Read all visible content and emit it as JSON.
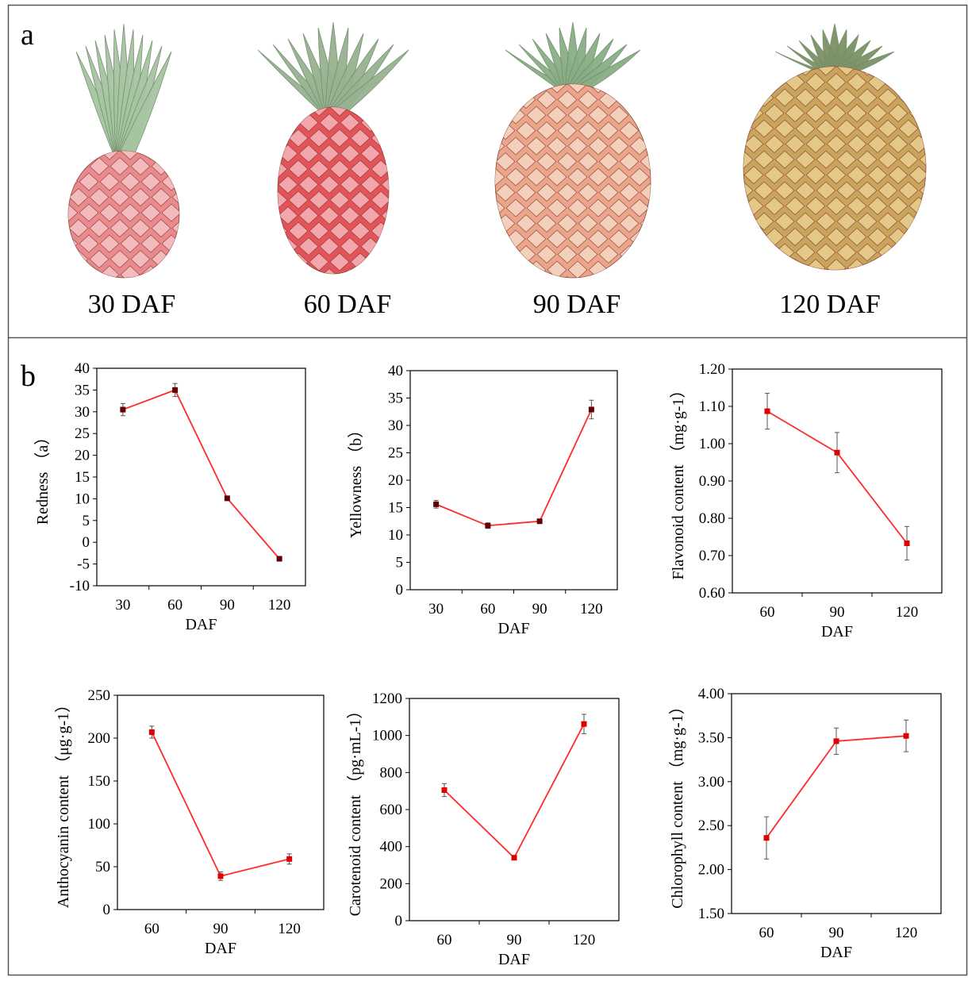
{
  "panel_a": {
    "label": "a",
    "stages": [
      "30 DAF",
      "60 DAF",
      "90 DAF",
      "120 DAF"
    ],
    "fruit_colors": [
      {
        "body": "#e98a8e",
        "scale": "#f6c4c8",
        "crown": "#a7c4a2"
      },
      {
        "body": "#e2535a",
        "scale": "#f7b6bd",
        "crown": "#96b290"
      },
      {
        "body": "#eaa58a",
        "scale": "#f5d7c4",
        "crown": "#8aad86"
      },
      {
        "body": "#c9a45c",
        "scale": "#e8cf8f",
        "crown": "#7c9166"
      }
    ]
  },
  "panel_b": {
    "label": "b"
  },
  "colors": {
    "line": "#ff2a2a",
    "marker": "#e00000",
    "marker_dark": "#600000",
    "axis": "#000000",
    "error": "#555555"
  },
  "chart_data": [
    {
      "type": "line",
      "xlabel": "DAF",
      "ylabel": "Redness （a）",
      "x": [
        30,
        60,
        90,
        120
      ],
      "x_ticks": [
        "30",
        "60",
        "90",
        "120"
      ],
      "y_ticks": [
        "40",
        "35",
        "30",
        "25",
        "20",
        "15",
        "10",
        "5",
        "0",
        "-5",
        "-10"
      ],
      "ylim": [
        -10,
        40
      ],
      "values": [
        30.5,
        35.0,
        10.1,
        -3.8
      ],
      "errors": [
        1.4,
        1.5,
        0.3,
        0.3
      ]
    },
    {
      "type": "line",
      "xlabel": "DAF",
      "ylabel": "Yellowness （b）",
      "x": [
        30,
        60,
        90,
        120
      ],
      "x_ticks": [
        "30",
        "60",
        "90",
        "120"
      ],
      "y_ticks": [
        "40",
        "35",
        "30",
        "25",
        "20",
        "15",
        "10",
        "5",
        "0"
      ],
      "ylim": [
        0,
        40
      ],
      "values": [
        15.6,
        11.7,
        12.5,
        32.9
      ],
      "errors": [
        0.7,
        0.5,
        0.4,
        1.7
      ]
    },
    {
      "type": "line",
      "xlabel": "DAF",
      "ylabel": "Flavonoid content （mg·g-1）",
      "x": [
        60,
        90,
        120
      ],
      "x_ticks": [
        "60",
        "90",
        "120"
      ],
      "y_ticks": [
        "1.20",
        "1.10",
        "1.00",
        "0.90",
        "0.80",
        "0.70",
        "0.60"
      ],
      "ylim": [
        0.6,
        1.2
      ],
      "values": [
        1.087,
        0.976,
        0.733
      ],
      "errors": [
        0.048,
        0.054,
        0.045
      ]
    },
    {
      "type": "line",
      "xlabel": "DAF",
      "ylabel": "Anthocyanin content （μg·g-1）",
      "x": [
        60,
        90,
        120
      ],
      "x_ticks": [
        "60",
        "90",
        "120"
      ],
      "y_ticks": [
        "250",
        "200",
        "150",
        "100",
        "50",
        "0"
      ],
      "ylim": [
        0,
        250
      ],
      "values": [
        207,
        39,
        59
      ],
      "errors": [
        7,
        5,
        6
      ]
    },
    {
      "type": "line",
      "xlabel": "DAF",
      "ylabel": "Carotenoid content （pg·mL-1）",
      "x": [
        60,
        90,
        120
      ],
      "x_ticks": [
        "60",
        "90",
        "120"
      ],
      "y_ticks": [
        "1200",
        "1000",
        "800",
        "600",
        "400",
        "200",
        "0"
      ],
      "ylim": [
        0,
        1200
      ],
      "values": [
        705,
        340,
        1062
      ],
      "errors": [
        35,
        10,
        52
      ]
    },
    {
      "type": "line",
      "xlabel": "DAF",
      "ylabel": "Chlorophyll content （mg·g-1）",
      "x": [
        60,
        90,
        120
      ],
      "x_ticks": [
        "60",
        "90",
        "120"
      ],
      "y_ticks": [
        "4.00",
        "3.50",
        "3.00",
        "2.50",
        "2.00",
        "1.50"
      ],
      "ylim": [
        1.5,
        4.0
      ],
      "values": [
        2.36,
        3.46,
        3.52
      ],
      "errors": [
        0.24,
        0.15,
        0.18
      ]
    }
  ]
}
